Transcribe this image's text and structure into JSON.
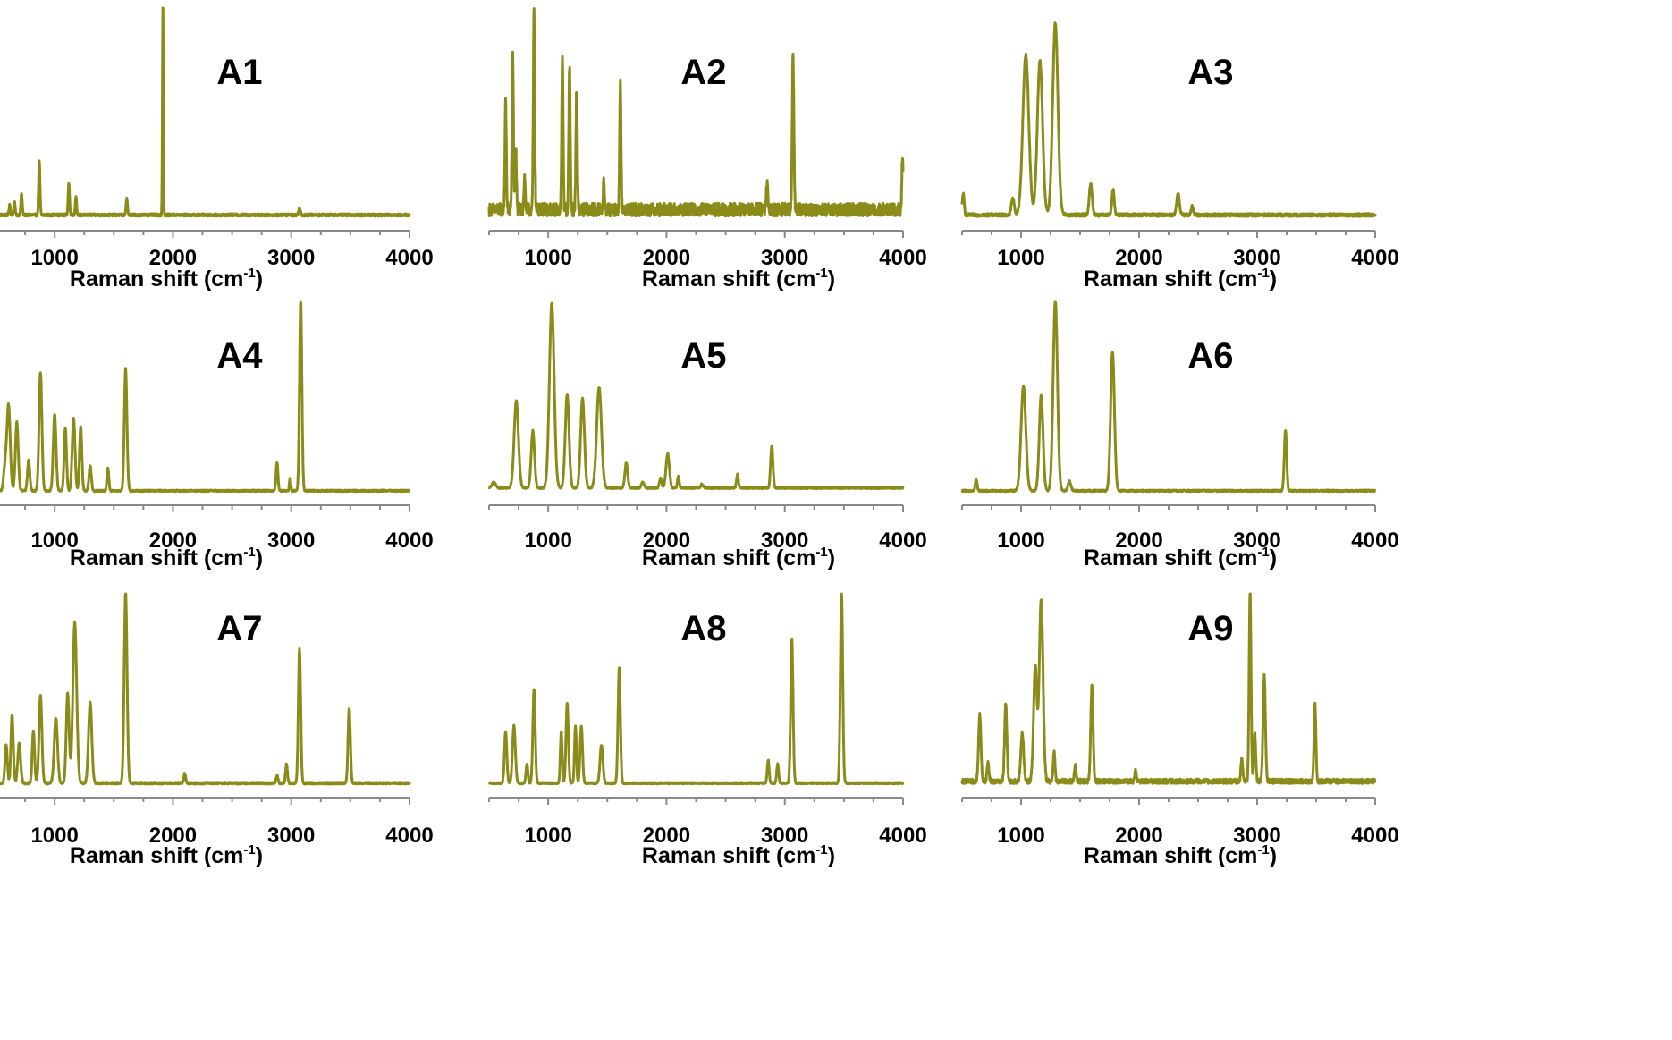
{
  "chart_data": {
    "type": "line",
    "figure_layout": "3x3 grid",
    "line_color": "#8B8B1A",
    "shared_xlabel": "Raman shift (cm",
    "shared_xlabel_sup": "-1",
    "shared_xlabel_close": ")",
    "xlim": [
      500,
      4000
    ],
    "xticks": [
      1000,
      2000,
      3000,
      4000
    ],
    "xtick_labels": [
      "1000",
      "2000",
      "3000",
      "4000"
    ],
    "ylim": [
      0,
      1
    ],
    "panels": [
      {
        "label": "A1",
        "baseline": 0.015,
        "noise": 0.006,
        "peaks": [
          [
            620,
            0.05,
            6
          ],
          [
            660,
            0.06,
            6
          ],
          [
            720,
            0.1,
            6
          ],
          [
            870,
            0.25,
            6
          ],
          [
            1120,
            0.15,
            6
          ],
          [
            1180,
            0.09,
            6
          ],
          [
            1610,
            0.08,
            6
          ],
          [
            1915,
            1.0,
            4
          ],
          [
            3070,
            0.03,
            8
          ]
        ]
      },
      {
        "label": "A2",
        "baseline": 0.04,
        "noise": 0.03,
        "peaks": [
          [
            640,
            0.5,
            6
          ],
          [
            700,
            0.72,
            6
          ],
          [
            725,
            0.3,
            6
          ],
          [
            800,
            0.15,
            6
          ],
          [
            880,
            0.94,
            6
          ],
          [
            1120,
            0.72,
            6
          ],
          [
            1180,
            0.68,
            6
          ],
          [
            1240,
            0.55,
            6
          ],
          [
            1470,
            0.12,
            6
          ],
          [
            1610,
            0.58,
            6
          ],
          [
            2850,
            0.12,
            6
          ],
          [
            3070,
            0.72,
            7
          ],
          [
            3995,
            0.25,
            5
          ]
        ]
      },
      {
        "label": "A3",
        "baseline": 0.015,
        "noise": 0.007,
        "peaks": [
          [
            510,
            0.1,
            8
          ],
          [
            930,
            0.08,
            12
          ],
          [
            1040,
            0.75,
            25
          ],
          [
            1160,
            0.72,
            22
          ],
          [
            1290,
            0.9,
            22
          ],
          [
            1590,
            0.15,
            12
          ],
          [
            1780,
            0.12,
            10
          ],
          [
            2330,
            0.1,
            12
          ],
          [
            2450,
            0.04,
            10
          ]
        ]
      },
      {
        "label": "A4",
        "baseline": 0.01,
        "noise": 0.004,
        "peaks": [
          [
            580,
            0.12,
            12
          ],
          [
            610,
            0.45,
            14
          ],
          [
            680,
            0.36,
            12
          ],
          [
            780,
            0.16,
            10
          ],
          [
            880,
            0.62,
            12
          ],
          [
            1000,
            0.4,
            12
          ],
          [
            1090,
            0.33,
            10
          ],
          [
            1160,
            0.38,
            12
          ],
          [
            1220,
            0.34,
            10
          ],
          [
            1300,
            0.13,
            10
          ],
          [
            1450,
            0.12,
            8
          ],
          [
            1600,
            0.64,
            11
          ],
          [
            2880,
            0.15,
            8
          ],
          [
            2990,
            0.07,
            6
          ],
          [
            3080,
            1.0,
            10
          ]
        ]
      },
      {
        "label": "A5",
        "baseline": 0.025,
        "noise": 0.004,
        "peaks": [
          [
            540,
            0.03,
            15
          ],
          [
            730,
            0.46,
            18
          ],
          [
            870,
            0.3,
            14
          ],
          [
            1030,
            0.97,
            20
          ],
          [
            1160,
            0.49,
            16
          ],
          [
            1290,
            0.47,
            16
          ],
          [
            1430,
            0.53,
            20
          ],
          [
            1660,
            0.13,
            12
          ],
          [
            1800,
            0.03,
            12
          ],
          [
            1950,
            0.05,
            10
          ],
          [
            2010,
            0.18,
            14
          ],
          [
            2100,
            0.06,
            8
          ],
          [
            2300,
            0.02,
            10
          ],
          [
            2600,
            0.07,
            8
          ],
          [
            2890,
            0.22,
            10
          ]
        ]
      },
      {
        "label": "A6",
        "baseline": 0.01,
        "noise": 0.004,
        "peaks": [
          [
            620,
            0.06,
            8
          ],
          [
            1020,
            0.55,
            20
          ],
          [
            1170,
            0.5,
            16
          ],
          [
            1290,
            1.0,
            18
          ],
          [
            1410,
            0.05,
            12
          ],
          [
            1775,
            0.73,
            16
          ],
          [
            3240,
            0.32,
            10
          ]
        ]
      },
      {
        "label": "A7",
        "baseline": 0.01,
        "noise": 0.005,
        "peaks": [
          [
            590,
            0.2,
            10
          ],
          [
            640,
            0.36,
            10
          ],
          [
            700,
            0.21,
            12
          ],
          [
            820,
            0.27,
            10
          ],
          [
            880,
            0.46,
            12
          ],
          [
            1010,
            0.34,
            14
          ],
          [
            1110,
            0.47,
            12
          ],
          [
            1170,
            0.84,
            16
          ],
          [
            1300,
            0.42,
            14
          ],
          [
            1600,
            1.0,
            12
          ],
          [
            2100,
            0.05,
            8
          ],
          [
            2880,
            0.04,
            8
          ],
          [
            2960,
            0.1,
            8
          ],
          [
            3070,
            0.7,
            10
          ],
          [
            3490,
            0.39,
            10
          ]
        ]
      },
      {
        "label": "A8",
        "baseline": 0.01,
        "noise": 0.004,
        "peaks": [
          [
            640,
            0.27,
            10
          ],
          [
            710,
            0.3,
            12
          ],
          [
            820,
            0.1,
            8
          ],
          [
            880,
            0.49,
            10
          ],
          [
            1110,
            0.27,
            8
          ],
          [
            1160,
            0.42,
            10
          ],
          [
            1230,
            0.3,
            8
          ],
          [
            1280,
            0.3,
            10
          ],
          [
            1450,
            0.2,
            12
          ],
          [
            1600,
            0.6,
            10
          ],
          [
            2860,
            0.12,
            8
          ],
          [
            2940,
            0.1,
            8
          ],
          [
            3060,
            0.75,
            10
          ],
          [
            3480,
            1.0,
            10
          ]
        ]
      },
      {
        "label": "A9",
        "baseline": 0.02,
        "noise": 0.012,
        "peaks": [
          [
            650,
            0.35,
            10
          ],
          [
            720,
            0.1,
            8
          ],
          [
            870,
            0.4,
            10
          ],
          [
            1010,
            0.25,
            12
          ],
          [
            1120,
            0.6,
            14
          ],
          [
            1170,
            0.95,
            16
          ],
          [
            1280,
            0.15,
            8
          ],
          [
            1460,
            0.08,
            8
          ],
          [
            1600,
            0.5,
            10
          ],
          [
            1970,
            0.06,
            6
          ],
          [
            2870,
            0.12,
            8
          ],
          [
            2940,
            1.0,
            8
          ],
          [
            2980,
            0.25,
            8
          ],
          [
            3060,
            0.55,
            10
          ],
          [
            3490,
            0.4,
            8
          ]
        ]
      }
    ]
  }
}
